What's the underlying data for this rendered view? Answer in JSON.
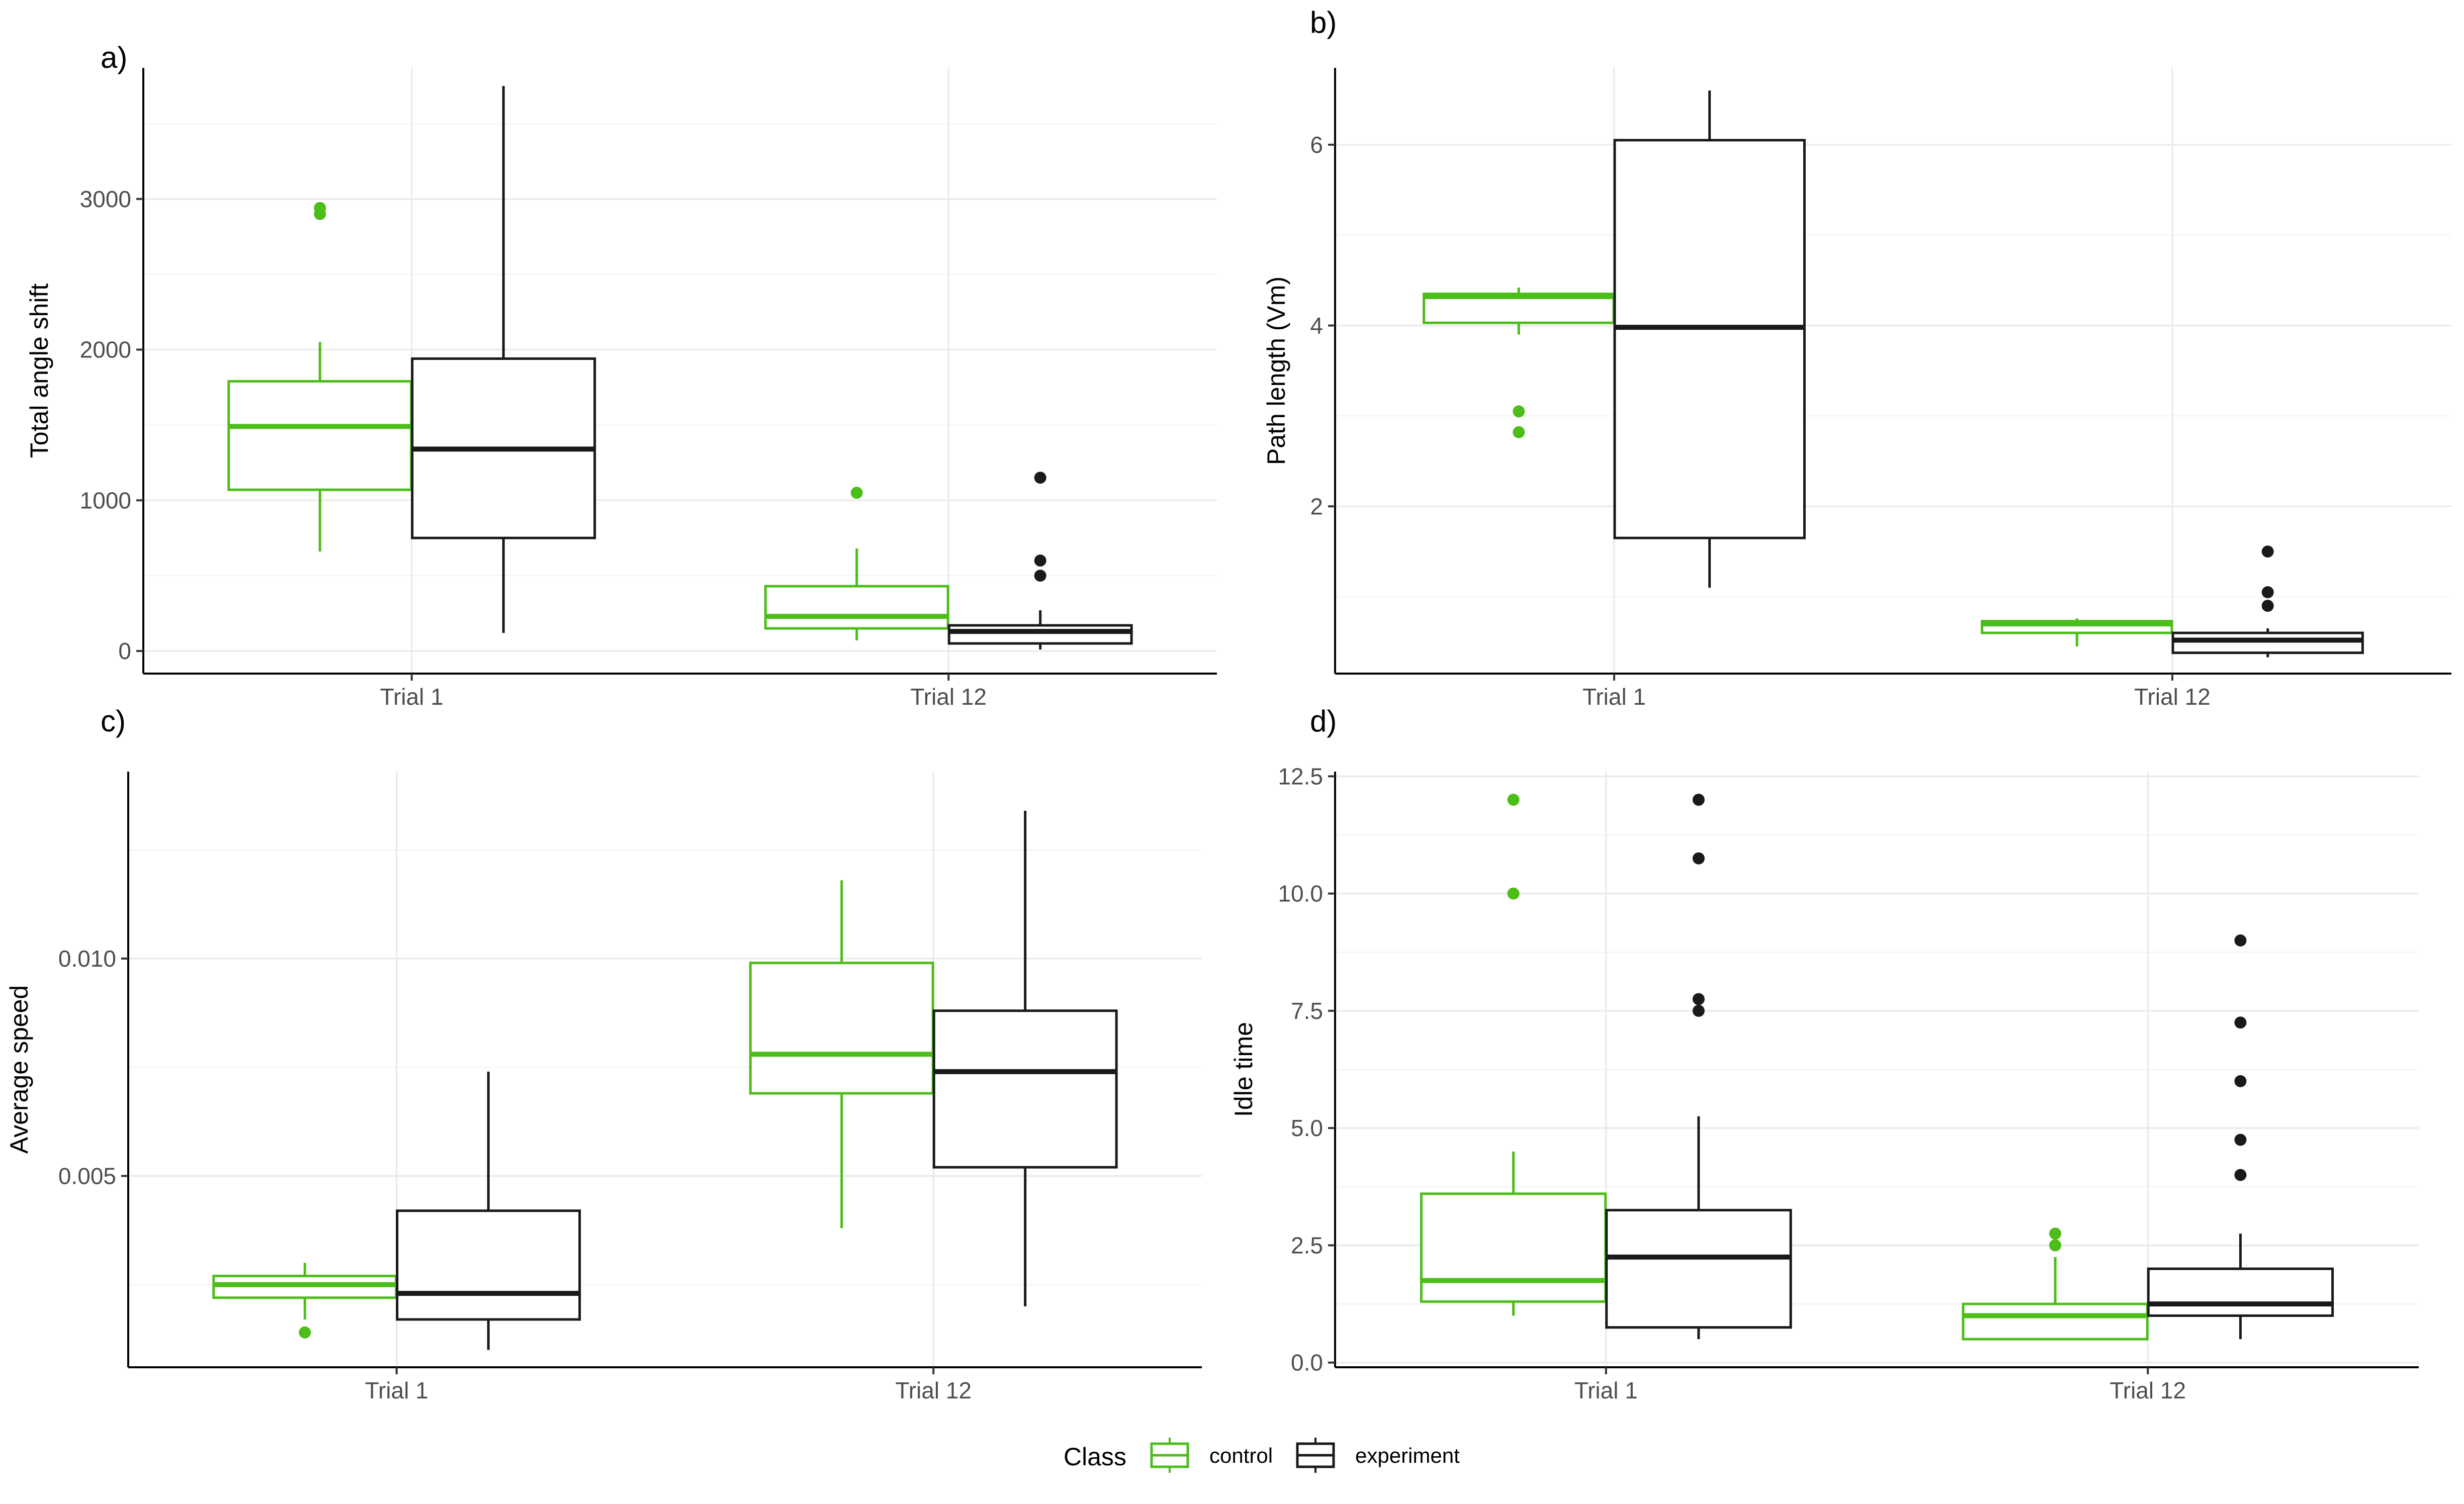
{
  "colors": {
    "control": "#4dbd19",
    "experiment": "#1a1a1a"
  },
  "legend": {
    "title": "Class",
    "entries": [
      {
        "key": "control",
        "label": "control"
      },
      {
        "key": "experiment",
        "label": "experiment"
      }
    ]
  },
  "chart_data": [
    {
      "type": "boxplot",
      "tag": "a)",
      "ylabel": "Total angle shift",
      "categories": [
        "Trial 1",
        "Trial 12"
      ],
      "ylim": [
        -150,
        3870
      ],
      "yticks": [
        0,
        1000,
        2000,
        3000
      ],
      "ytick_labels": [
        "0",
        "1000",
        "2000",
        "3000"
      ],
      "yminor": [
        500,
        1500,
        2500,
        3500
      ],
      "series": [
        {
          "name": "control",
          "boxes": [
            {
              "whisker_low": 660,
              "q1": 1070,
              "median": 1490,
              "q3": 1790,
              "whisker_high": 2050,
              "outliers": [
                2900,
                2940
              ]
            },
            {
              "whisker_low": 70,
              "q1": 150,
              "median": 230,
              "q3": 430,
              "whisker_high": 680,
              "outliers": [
                1050
              ]
            }
          ]
        },
        {
          "name": "experiment",
          "boxes": [
            {
              "whisker_low": 120,
              "q1": 750,
              "median": 1340,
              "q3": 1940,
              "whisker_high": 3750,
              "outliers": []
            },
            {
              "whisker_low": 10,
              "q1": 50,
              "median": 130,
              "q3": 170,
              "whisker_high": 270,
              "outliers": [
                500,
                600,
                1150
              ]
            }
          ]
        }
      ]
    },
    {
      "type": "boxplot",
      "tag": "b)",
      "ylabel": "Path length (Vm)",
      "categories": [
        "Trial 1",
        "Trial 12"
      ],
      "ylim": [
        0.15,
        6.85
      ],
      "yticks": [
        2,
        4,
        6
      ],
      "ytick_labels": [
        "2",
        "4",
        "6"
      ],
      "yminor": [
        1,
        3,
        5
      ],
      "series": [
        {
          "name": "control",
          "boxes": [
            {
              "whisker_low": 3.9,
              "q1": 4.03,
              "median": 4.32,
              "q3": 4.35,
              "whisker_high": 4.42,
              "outliers": [
                2.82,
                3.05
              ]
            },
            {
              "whisker_low": 0.45,
              "q1": 0.6,
              "median": 0.7,
              "q3": 0.73,
              "whisker_high": 0.76,
              "outliers": []
            }
          ]
        },
        {
          "name": "experiment",
          "boxes": [
            {
              "whisker_low": 1.1,
              "q1": 1.65,
              "median": 3.98,
              "q3": 6.05,
              "whisker_high": 6.6,
              "outliers": []
            },
            {
              "whisker_low": 0.33,
              "q1": 0.38,
              "median": 0.52,
              "q3": 0.6,
              "whisker_high": 0.65,
              "outliers": [
                0.9,
                1.05,
                1.5
              ]
            }
          ]
        }
      ]
    },
    {
      "type": "boxplot",
      "tag": "c)",
      "ylabel": "Average speed",
      "categories": [
        "Trial 1",
        "Trial 12"
      ],
      "ylim": [
        0.0006,
        0.0143
      ],
      "yticks": [
        0.005,
        0.01
      ],
      "ytick_labels": [
        "0.005",
        "0.010"
      ],
      "yminor": [
        0.0025,
        0.0075,
        0.0125
      ],
      "series": [
        {
          "name": "control",
          "boxes": [
            {
              "whisker_low": 0.0017,
              "q1": 0.0022,
              "median": 0.0025,
              "q3": 0.0027,
              "whisker_high": 0.003,
              "outliers": [
                0.0014
              ]
            },
            {
              "whisker_low": 0.0038,
              "q1": 0.0069,
              "median": 0.0078,
              "q3": 0.0099,
              "whisker_high": 0.0118,
              "outliers": []
            }
          ]
        },
        {
          "name": "experiment",
          "boxes": [
            {
              "whisker_low": 0.001,
              "q1": 0.0017,
              "median": 0.0023,
              "q3": 0.0042,
              "whisker_high": 0.0074,
              "outliers": []
            },
            {
              "whisker_low": 0.002,
              "q1": 0.0052,
              "median": 0.0074,
              "q3": 0.0088,
              "whisker_high": 0.0134,
              "outliers": []
            }
          ]
        }
      ]
    },
    {
      "type": "boxplot",
      "tag": "d)",
      "ylabel": "Idle time",
      "categories": [
        "Trial 1",
        "Trial 12"
      ],
      "ylim": [
        -0.1,
        12.6
      ],
      "yticks": [
        0,
        2.5,
        5,
        7.5,
        10,
        12.5
      ],
      "ytick_labels": [
        "0.0",
        "2.5",
        "5.0",
        "7.5",
        "10.0",
        "12.5"
      ],
      "yminor": [
        1.25,
        3.75,
        6.25,
        8.75,
        11.25
      ],
      "series": [
        {
          "name": "control",
          "boxes": [
            {
              "whisker_low": 1.0,
              "q1": 1.3,
              "median": 1.75,
              "q3": 3.6,
              "whisker_high": 4.5,
              "outliers": [
                10.0,
                12.0
              ]
            },
            {
              "whisker_low": 0.5,
              "q1": 0.5,
              "median": 1.0,
              "q3": 1.25,
              "whisker_high": 2.25,
              "outliers": [
                2.5,
                2.75
              ]
            }
          ]
        },
        {
          "name": "experiment",
          "boxes": [
            {
              "whisker_low": 0.5,
              "q1": 0.75,
              "median": 2.25,
              "q3": 3.25,
              "whisker_high": 5.25,
              "outliers": [
                7.5,
                7.75,
                10.75,
                12.0
              ]
            },
            {
              "whisker_low": 0.5,
              "q1": 1.0,
              "median": 1.25,
              "q3": 2.0,
              "whisker_high": 2.75,
              "outliers": [
                4.0,
                4.75,
                6.0,
                7.25,
                9.0
              ]
            }
          ]
        }
      ]
    }
  ]
}
